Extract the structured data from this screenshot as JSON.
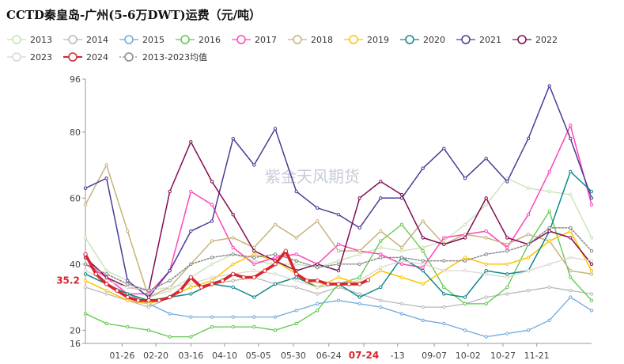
{
  "chart_data": {
    "type": "line",
    "title": "CCTD秦皇岛-广州(5-6万DWT)运费（元/吨）",
    "xlabel": "",
    "ylabel": "",
    "ylim": [
      16,
      96
    ],
    "xlim": [
      0,
      12
    ],
    "grid": false,
    "legend_position": "top",
    "x_ticks": [
      {
        "x": 0.87,
        "label": "01-26"
      },
      {
        "x": 1.67,
        "label": "02-20"
      },
      {
        "x": 2.5,
        "label": "03-16"
      },
      {
        "x": 3.3,
        "label": "04-10"
      },
      {
        "x": 4.1,
        "label": "05-05"
      },
      {
        "x": 4.93,
        "label": "05-30"
      },
      {
        "x": 5.77,
        "label": "06-24"
      },
      {
        "x": 6.6,
        "label": "07-24",
        "highlight": true
      },
      {
        "x": 7.4,
        "label": "-13"
      },
      {
        "x": 8.27,
        "label": "09-07"
      },
      {
        "x": 9.07,
        "label": "10-02"
      },
      {
        "x": 9.9,
        "label": "10-27"
      },
      {
        "x": 10.7,
        "label": "11-21"
      }
    ],
    "y_ticks": [
      16,
      20,
      40,
      60,
      80,
      96
    ],
    "current_value_label": "35.2",
    "watermark": "紫金天风期货",
    "series": [
      {
        "name": "2013",
        "color": "#c6e2b0",
        "dash": "",
        "width": 1.3,
        "marker": "circle",
        "x": [
          0,
          0.5,
          1,
          1.5,
          2,
          2.5,
          3,
          3.5,
          4,
          4.5,
          5,
          5.5,
          6,
          6.5,
          7,
          7.5,
          8,
          8.5,
          9,
          9.5,
          10,
          10.5,
          11,
          11.5,
          12
        ],
        "y": [
          48,
          38,
          35,
          30,
          32,
          36,
          40,
          43,
          41,
          40,
          40,
          39,
          41,
          43,
          45,
          44,
          45,
          47,
          52,
          58,
          66,
          63,
          62,
          61,
          48
        ]
      },
      {
        "name": "2014",
        "color": "#b8b8b8",
        "dash": "",
        "width": 1.3,
        "marker": "circle",
        "x": [
          0,
          0.5,
          1,
          1.5,
          2,
          2.5,
          3,
          3.5,
          4,
          4.5,
          5,
          5.5,
          6,
          6.5,
          7,
          7.5,
          8,
          8.5,
          9,
          9.5,
          10,
          10.5,
          11,
          11.5,
          12
        ],
        "y": [
          33,
          31,
          29,
          27,
          30,
          33,
          34,
          35,
          36,
          34,
          33,
          31,
          33,
          31,
          29,
          28,
          27,
          27,
          28,
          30,
          31,
          32,
          33,
          32,
          31
        ]
      },
      {
        "name": "2015",
        "color": "#6fa8dc",
        "dash": "",
        "width": 1.3,
        "marker": "circle",
        "x": [
          0,
          0.5,
          1,
          1.5,
          2,
          2.5,
          3,
          3.5,
          4,
          4.5,
          5,
          5.5,
          6,
          6.5,
          7,
          7.5,
          8,
          8.5,
          9,
          9.5,
          10,
          10.5,
          11,
          11.5,
          12
        ],
        "y": [
          37,
          34,
          31,
          28,
          25,
          24,
          24,
          24,
          24,
          24,
          26,
          28,
          29,
          28,
          27,
          25,
          23,
          22,
          20,
          18,
          19,
          20,
          23,
          30,
          26
        ]
      },
      {
        "name": "2016",
        "color": "#5cc84a",
        "dash": "",
        "width": 1.3,
        "marker": "circle",
        "x": [
          0,
          0.5,
          1,
          1.5,
          2,
          2.5,
          3,
          3.5,
          4,
          4.5,
          5,
          5.5,
          6,
          6.5,
          7,
          7.5,
          8,
          8.5,
          9,
          9.5,
          10,
          10.5,
          11,
          11.5,
          12
        ],
        "y": [
          25,
          22,
          21,
          20,
          18,
          18,
          21,
          21,
          21,
          20,
          22,
          26,
          34,
          36,
          47,
          52,
          44,
          33,
          28,
          28,
          33,
          46,
          56,
          36,
          29
        ]
      },
      {
        "name": "2017",
        "color": "#ff44b8",
        "dash": "",
        "width": 1.5,
        "marker": "circle",
        "x": [
          0,
          0.5,
          1,
          1.5,
          2,
          2.5,
          3,
          3.5,
          4,
          4.5,
          5,
          5.5,
          6,
          6.5,
          7,
          7.5,
          8,
          8.5,
          9,
          9.5,
          10,
          10.5,
          11,
          11.5,
          12
        ],
        "y": [
          40,
          36,
          31,
          31,
          38,
          62,
          58,
          45,
          40,
          42,
          43,
          40,
          46,
          44,
          43,
          40,
          39,
          48,
          49,
          50,
          45,
          55,
          68,
          82,
          58
        ]
      },
      {
        "name": "2018",
        "color": "#c7b27c",
        "dash": "",
        "width": 1.5,
        "marker": "circle",
        "x": [
          0,
          0.5,
          1,
          1.5,
          2,
          2.5,
          3,
          3.5,
          4,
          4.5,
          5,
          5.5,
          6,
          6.5,
          7,
          7.5,
          8,
          8.5,
          9,
          9.5,
          10,
          10.5,
          11,
          11.5,
          12
        ],
        "y": [
          58,
          70,
          50,
          30,
          33,
          40,
          47,
          48,
          45,
          52,
          48,
          53,
          44,
          44,
          50,
          45,
          53,
          46,
          49,
          48,
          46,
          49,
          47,
          38,
          37
        ]
      },
      {
        "name": "2019",
        "color": "#ffc400",
        "dash": "",
        "width": 1.5,
        "marker": "circle",
        "x": [
          0,
          0.5,
          1,
          1.5,
          2,
          2.5,
          3,
          3.5,
          4,
          4.5,
          5,
          5.5,
          6,
          6.5,
          7,
          7.5,
          8,
          8.5,
          9,
          9.5,
          10,
          10.5,
          11,
          11.5,
          12
        ],
        "y": [
          35,
          32,
          29,
          28,
          30,
          33,
          35,
          40,
          43,
          41,
          37,
          33,
          36,
          34,
          38,
          36,
          34,
          38,
          42,
          40,
          40,
          42,
          47,
          50,
          38
        ]
      },
      {
        "name": "2020",
        "color": "#10898a",
        "dash": "",
        "width": 1.5,
        "marker": "circle",
        "x": [
          0,
          0.5,
          1,
          1.5,
          2,
          2.5,
          3,
          3.5,
          4,
          4.5,
          5,
          5.5,
          6,
          6.5,
          7,
          7.5,
          8,
          8.5,
          9,
          9.5,
          10,
          10.5,
          11,
          11.5,
          12
        ],
        "y": [
          37,
          34,
          31,
          29,
          30,
          31,
          34,
          33,
          30,
          34,
          36,
          33,
          34,
          30,
          33,
          42,
          38,
          31,
          30,
          38,
          37,
          38,
          50,
          68,
          62
        ]
      },
      {
        "name": "2021",
        "color": "#4b3b96",
        "dash": "",
        "width": 1.5,
        "marker": "circle",
        "x": [
          0,
          0.5,
          1,
          1.5,
          2,
          2.5,
          3,
          3.5,
          4,
          4.5,
          5,
          5.5,
          6,
          6.5,
          7,
          7.5,
          8,
          8.5,
          9,
          9.5,
          10,
          10.5,
          11,
          11.5,
          12
        ],
        "y": [
          63,
          66,
          35,
          30,
          38,
          50,
          53,
          78,
          70,
          81,
          62,
          57,
          55,
          51,
          60,
          60,
          69,
          75,
          66,
          72,
          65,
          78,
          94,
          78,
          60
        ]
      },
      {
        "name": "2022",
        "color": "#820b52",
        "dash": "",
        "width": 1.5,
        "marker": "circle",
        "x": [
          0,
          0.5,
          1,
          1.5,
          2,
          2.5,
          3,
          3.5,
          4,
          4.5,
          5,
          5.5,
          6,
          6.5,
          7,
          7.5,
          8,
          8.5,
          9,
          9.5,
          10,
          10.5,
          11,
          11.5,
          12
        ],
        "y": [
          42,
          36,
          33,
          32,
          62,
          77,
          65,
          55,
          44,
          41,
          38,
          40,
          38,
          60,
          65,
          61,
          48,
          46,
          48,
          60,
          48,
          46,
          50,
          48,
          40
        ]
      },
      {
        "name": "2023",
        "color": "#d8d8cc",
        "dash": "",
        "width": 1.3,
        "marker": "circle",
        "x": [
          0,
          0.5,
          1,
          1.5,
          2,
          2.5,
          3,
          3.5,
          4,
          4.5,
          5,
          5.5,
          6,
          6.5,
          7,
          7.5,
          8,
          8.5,
          9,
          9.5,
          10,
          10.5,
          11,
          11.5,
          12
        ],
        "y": [
          38,
          35,
          33,
          32,
          33,
          34,
          36,
          37,
          38,
          37,
          35,
          33,
          34,
          35,
          39,
          41,
          40,
          38,
          38,
          37,
          36,
          38,
          40,
          42,
          41
        ]
      },
      {
        "name": "2024",
        "color": "#d9262c",
        "dash": "",
        "width": 3.6,
        "marker": "circle",
        "x": [
          0,
          0.25,
          0.5,
          0.75,
          1,
          1.25,
          1.5,
          1.75,
          2,
          2.25,
          2.5,
          2.75,
          3,
          3.25,
          3.5,
          3.75,
          4,
          4.25,
          4.5,
          4.75,
          5,
          5.25,
          5.5,
          5.75,
          6,
          6.25,
          6.5,
          6.7
        ],
        "y": [
          43,
          37,
          34,
          32,
          30,
          29,
          29,
          29,
          30,
          32,
          36,
          33,
          34,
          35,
          37,
          36,
          36,
          38,
          40,
          44,
          37,
          35,
          35,
          34,
          34,
          34,
          34,
          35.2
        ]
      },
      {
        "name": "2013-2023均值",
        "color": "#888888",
        "dash": "2,2",
        "width": 1.5,
        "marker": "circle",
        "x": [
          0,
          0.5,
          1,
          1.5,
          2,
          2.5,
          3,
          3.5,
          4,
          4.5,
          5,
          5.5,
          6,
          6.5,
          7,
          7.5,
          8,
          8.5,
          9,
          9.5,
          10,
          10.5,
          11,
          11.5,
          12
        ],
        "y": [
          40,
          37,
          34,
          32,
          35,
          40,
          42,
          43,
          42,
          43,
          41,
          39,
          40,
          40,
          42,
          42,
          41,
          41,
          41,
          43,
          44,
          46,
          51,
          51,
          44
        ]
      }
    ]
  }
}
